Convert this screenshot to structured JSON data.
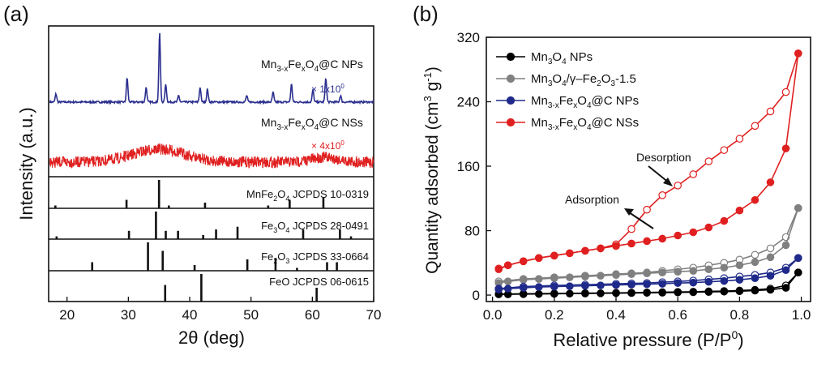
{
  "chart_data": [
    {
      "type": "line",
      "panel_label": "(a)",
      "xlabel": "2θ (deg)",
      "ylabel": "Intensity (a.u.)",
      "xlim": [
        17,
        70
      ],
      "x_ticks": [
        "20",
        "30",
        "40",
        "50",
        "60",
        "70"
      ],
      "x_tick_values": [
        20,
        30,
        40,
        50,
        60,
        70
      ],
      "series": [
        {
          "name": "Mn3-xFexO4@C NPs",
          "scale": "× 1x10",
          "scale_sup": "0",
          "color": "#2b2f8f",
          "peaks": [
            [
              18.2,
              10
            ],
            [
              29.8,
              30
            ],
            [
              32.9,
              18
            ],
            [
              35.1,
              85
            ],
            [
              36.1,
              22
            ],
            [
              38.2,
              8
            ],
            [
              41.7,
              18
            ],
            [
              42.9,
              16
            ],
            [
              49.3,
              8
            ],
            [
              53.6,
              12
            ],
            [
              56.6,
              22
            ],
            [
              60.1,
              15
            ],
            [
              62.2,
              30
            ],
            [
              64.6,
              8
            ]
          ]
        },
        {
          "name": "Mn3-xFexO4@C NSs",
          "scale": "× 4x10",
          "scale_sup": "0",
          "color": "#e02020"
        }
      ],
      "references": [
        {
          "name": "MnFe2O4 JCPDS 10-0319",
          "peaks": [
            [
              18.1,
              0.1
            ],
            [
              29.7,
              0.3
            ],
            [
              35.0,
              1.0
            ],
            [
              36.6,
              0.1
            ],
            [
              42.5,
              0.2
            ],
            [
              52.8,
              0.1
            ],
            [
              56.3,
              0.3
            ],
            [
              61.8,
              0.4
            ]
          ]
        },
        {
          "name": "Fe3O4 JCPDS 28-0491",
          "peaks": [
            [
              18.3,
              0.1
            ],
            [
              30.1,
              0.3
            ],
            [
              34.5,
              1.0
            ],
            [
              36.1,
              0.3
            ],
            [
              38.1,
              0.3
            ],
            [
              42.2,
              0.15
            ],
            [
              44.3,
              0.35
            ],
            [
              47.8,
              0.45
            ],
            [
              58.5,
              0.35
            ],
            [
              64.5,
              0.35
            ],
            [
              66.3,
              0.1
            ]
          ]
        },
        {
          "name": "Fe2O3 JCPDS 33-0664",
          "peaks": [
            [
              24.1,
              0.3
            ],
            [
              33.2,
              1.0
            ],
            [
              35.6,
              0.7
            ],
            [
              40.8,
              0.2
            ],
            [
              49.4,
              0.4
            ],
            [
              54.0,
              0.45
            ],
            [
              57.5,
              0.1
            ],
            [
              62.4,
              0.3
            ],
            [
              64.0,
              0.3
            ]
          ]
        },
        {
          "name": "FeO JCPDS 06-0615",
          "peaks": [
            [
              36.0,
              0.6
            ],
            [
              41.9,
              1.0
            ],
            [
              60.7,
              0.5
            ]
          ]
        }
      ]
    },
    {
      "type": "line",
      "panel_label": "(b)",
      "xlabel": "Relative pressure (P/P",
      "xlabel_sup": "0",
      "xlabel_tail": ")",
      "ylabel": "Quantity adsorbed (cm",
      "ylabel_sup1": "3",
      "ylabel_mid": " g",
      "ylabel_sup2": "-1",
      "ylabel_tail": ")",
      "xlim": [
        -0.02,
        1.03
      ],
      "ylim": [
        -8,
        320
      ],
      "x_ticks": [
        "0.0",
        "0.2",
        "0.4",
        "0.6",
        "0.8",
        "1.0"
      ],
      "x_tick_values": [
        0,
        0.2,
        0.4,
        0.6,
        0.8,
        1.0
      ],
      "y_ticks": [
        "0",
        "80",
        "160",
        "240",
        "320"
      ],
      "y_tick_values": [
        0,
        80,
        160,
        240,
        320
      ],
      "legend": [
        {
          "base": "Mn",
          "sub1": "3",
          "mid": "O",
          "sub2": "4",
          "tail": " NPs"
        },
        {
          "base": "Mn",
          "sub1": "3",
          "mid": "O",
          "sub2": "4",
          "tail": "/γ–Fe",
          "sub3": "2",
          "tail2": "O",
          "sub4": "3",
          "tail3": "-1.5"
        },
        {
          "base": "Mn",
          "sub1": "3-x",
          "mid": "Fe",
          "sub2": "x",
          "tail": "O",
          "sub3": "4",
          "tail2": "@C NPs"
        },
        {
          "base": "Mn",
          "sub1": "3-x",
          "mid": "Fe",
          "sub2": "x",
          "tail": "O",
          "sub3": "4",
          "tail2": "@C NSs"
        }
      ],
      "annotations": [
        "Desorption",
        "Adsorption"
      ],
      "series": [
        {
          "name": "Mn3O4 NPs",
          "color": "#000000",
          "adsorption": {
            "x": [
              0.02,
              0.05,
              0.1,
              0.15,
              0.2,
              0.25,
              0.3,
              0.35,
              0.4,
              0.45,
              0.5,
              0.55,
              0.6,
              0.65,
              0.7,
              0.75,
              0.8,
              0.85,
              0.9,
              0.95,
              0.99
            ],
            "y": [
              1,
              1,
              1.2,
              1.4,
              1.6,
              1.8,
              2,
              2.2,
              2.4,
              2.6,
              2.8,
              3,
              3.3,
              3.6,
              3.9,
              4.3,
              4.8,
              5.6,
              6.6,
              9,
              28
            ]
          },
          "desorption": {
            "x": [
              0.99,
              0.95,
              0.9,
              0.85,
              0.8,
              0.75,
              0.7,
              0.65,
              0.6,
              0.55,
              0.5,
              0.45,
              0.4,
              0.3,
              0.2,
              0.1,
              0.02
            ],
            "y": [
              28,
              12,
              8,
              6.5,
              5.6,
              5,
              4.6,
              4.2,
              3.9,
              3.6,
              3.3,
              3,
              2.8,
              2.4,
              2,
              1.6,
              1.2
            ]
          }
        },
        {
          "name": "Mn3O4/γ–Fe2O3-1.5",
          "color": "#808080",
          "adsorption": {
            "x": [
              0.02,
              0.05,
              0.1,
              0.15,
              0.2,
              0.25,
              0.3,
              0.35,
              0.4,
              0.45,
              0.5,
              0.55,
              0.6,
              0.65,
              0.7,
              0.75,
              0.8,
              0.85,
              0.9,
              0.95,
              0.99
            ],
            "y": [
              15,
              17,
              19,
              20,
              21,
              22,
              23,
              24,
              25,
              26,
              27,
              28,
              29,
              30,
              32,
              34,
              37,
              41,
              47,
              62,
              108
            ]
          },
          "desorption": {
            "x": [
              0.99,
              0.95,
              0.9,
              0.85,
              0.8,
              0.75,
              0.7,
              0.65,
              0.6,
              0.55,
              0.5,
              0.45,
              0.4,
              0.3,
              0.2,
              0.1,
              0.02
            ],
            "y": [
              108,
              72,
              58,
              50,
              44,
              40,
              37,
              34,
              32,
              30,
              28,
              27,
              26,
              24,
              22,
              20,
              17
            ]
          }
        },
        {
          "name": "Mn3-xFexO4@C NPs",
          "color": "#1f2a8a",
          "adsorption": {
            "x": [
              0.02,
              0.05,
              0.1,
              0.15,
              0.2,
              0.25,
              0.3,
              0.35,
              0.4,
              0.45,
              0.5,
              0.55,
              0.6,
              0.65,
              0.7,
              0.75,
              0.8,
              0.85,
              0.9,
              0.95,
              0.99
            ],
            "y": [
              7,
              8,
              9,
              10,
              10.5,
              11,
              11.5,
              12,
              12.5,
              13,
              13.5,
              14,
              15,
              15.5,
              16.5,
              17.5,
              19,
              21,
              24,
              31,
              46
            ]
          },
          "desorption": {
            "x": [
              0.99,
              0.95,
              0.9,
              0.85,
              0.8,
              0.75,
              0.7,
              0.65,
              0.6,
              0.55,
              0.5,
              0.45,
              0.4,
              0.3,
              0.2,
              0.1,
              0.02
            ],
            "y": [
              46,
              34,
              28,
              25,
              23,
              21,
              19.5,
              18,
              17,
              16,
              15,
              14.5,
              14,
              13,
              12,
              10.5,
              8
            ]
          }
        },
        {
          "name": "Mn3-xFexO4@C NSs",
          "color": "#e02020",
          "adsorption": {
            "x": [
              0.02,
              0.05,
              0.1,
              0.15,
              0.2,
              0.25,
              0.3,
              0.35,
              0.4,
              0.45,
              0.5,
              0.55,
              0.6,
              0.65,
              0.7,
              0.75,
              0.8,
              0.85,
              0.9,
              0.95,
              0.99
            ],
            "y": [
              32,
              37,
              42,
              46,
              49,
              52,
              55,
              58,
              61,
              64,
              67,
              70,
              74,
              78,
              84,
              92,
              105,
              118,
              140,
              182,
              300
            ]
          },
          "desorption": {
            "x": [
              0.99,
              0.95,
              0.9,
              0.85,
              0.8,
              0.75,
              0.7,
              0.65,
              0.6,
              0.55,
              0.5,
              0.45,
              0.4,
              0.35,
              0.3,
              0.25,
              0.2,
              0.15,
              0.1,
              0.05,
              0.02
            ],
            "y": [
              300,
              252,
              228,
              210,
              194,
              180,
              166,
              150,
              136,
              124,
              106,
              82,
              63,
              58,
              55,
              52,
              49,
              46,
              42,
              37,
              33
            ]
          }
        }
      ]
    }
  ]
}
